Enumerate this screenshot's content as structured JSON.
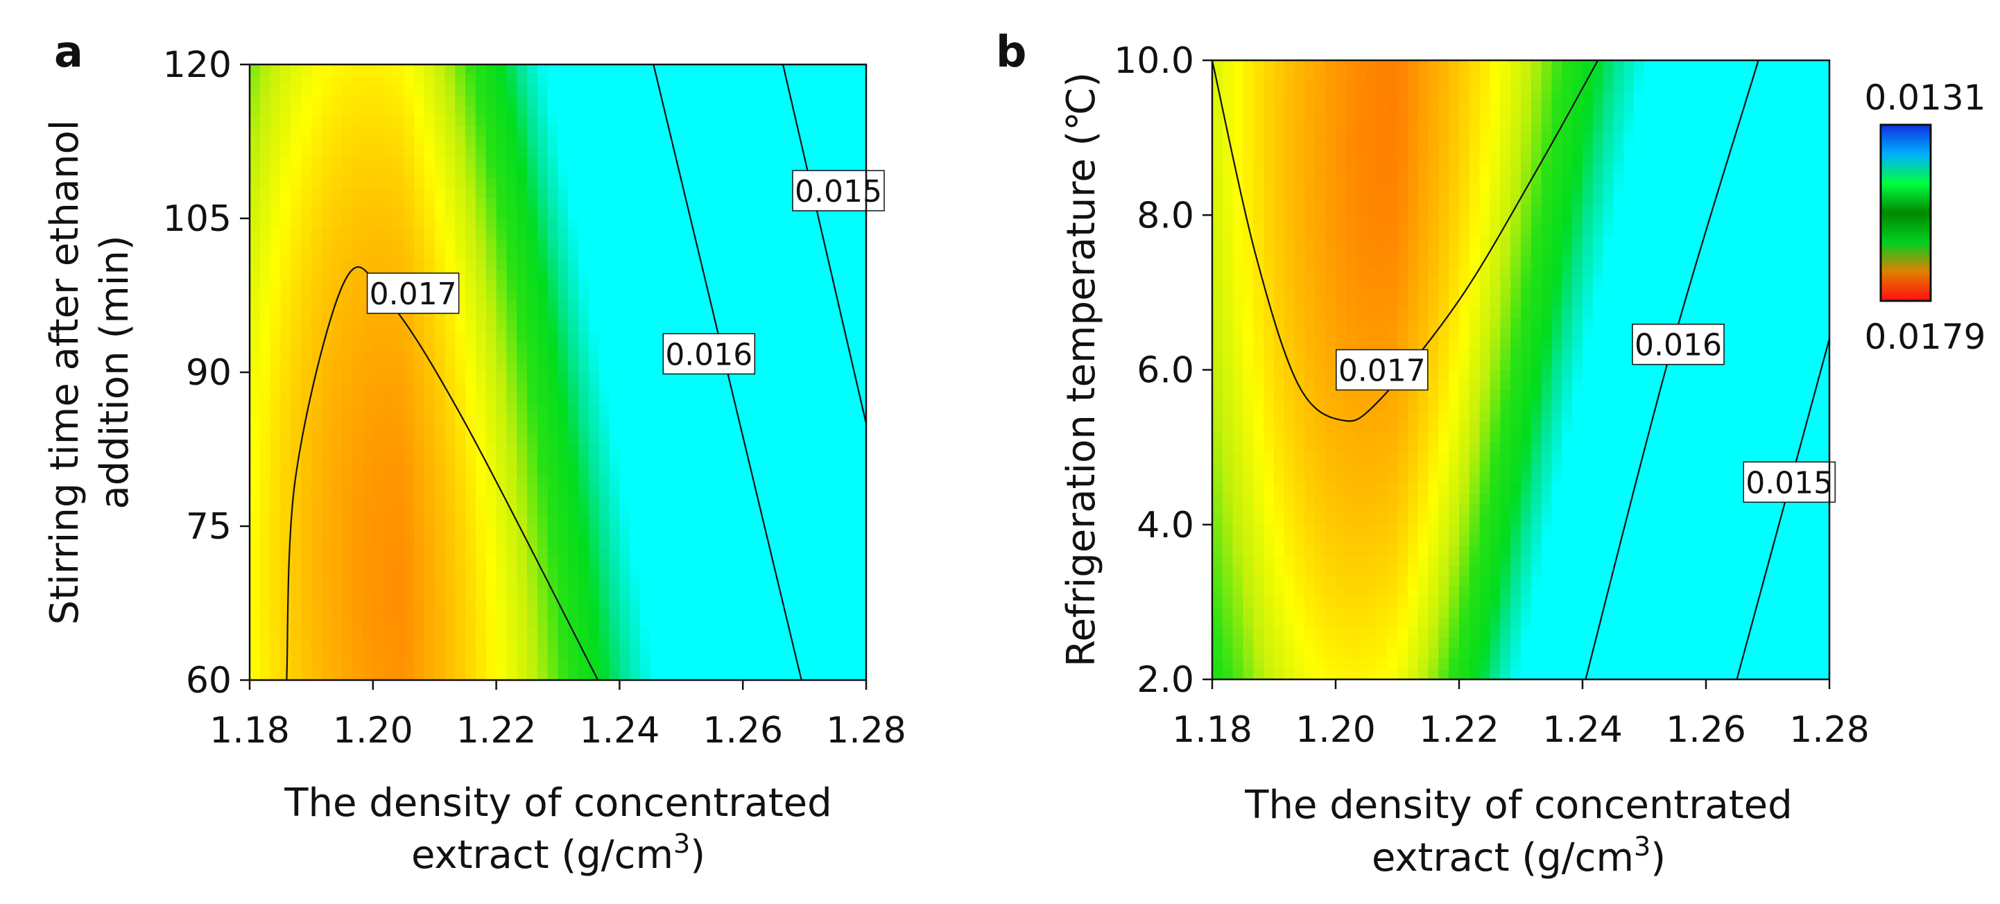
{
  "chart_data": [
    {
      "panel": "a",
      "type": "heatmap",
      "xlabel": [
        "The density of concentrated",
        "extract (g/cm³)"
      ],
      "ylabel": [
        "Stirring time after ethanol",
        "addition (min)"
      ],
      "xlim": [
        1.18,
        1.28
      ],
      "ylim": [
        60,
        120
      ],
      "xticks": [
        "1.18",
        "1.20",
        "1.22",
        "1.24",
        "1.26",
        "1.28"
      ],
      "yticks": [
        "60",
        "75",
        "90",
        "105",
        "120"
      ],
      "surface": {
        "peak_x": 1.205,
        "peak_y": 68,
        "peak_value": 0.01742,
        "corner_value_x1.28_y120": 0.0145
      },
      "contours": [
        {
          "label": "0.017",
          "points": [
            [
              1.186,
              60
            ],
            [
              1.1875,
              80
            ],
            [
              1.1955,
              99
            ],
            [
              1.2025,
              97
            ],
            [
              1.215,
              85
            ],
            [
              1.2365,
              60
            ]
          ],
          "label_at": [
            1.2065,
            97.7
          ]
        },
        {
          "label": "0.016",
          "points": [
            [
              1.2455,
              120
            ],
            [
              1.2695,
              60
            ]
          ],
          "label_at": [
            1.2545,
            91.8
          ]
        },
        {
          "label": "0.015",
          "points": [
            [
              1.2665,
              120
            ],
            [
              1.28,
              85
            ]
          ],
          "label_at": [
            1.2755,
            107.7
          ]
        }
      ]
    },
    {
      "panel": "b",
      "type": "heatmap",
      "xlabel": [
        "The density of concentrated",
        "extract (g/cm³)"
      ],
      "ylabel": [
        "Refrigeration temperature (℃)"
      ],
      "xlim": [
        1.18,
        1.28
      ],
      "ylim": [
        2.0,
        10.0
      ],
      "xticks": [
        "1.18",
        "1.20",
        "1.22",
        "1.24",
        "1.26",
        "1.28"
      ],
      "yticks": [
        "2.0",
        "4.0",
        "6.0",
        "8.0",
        "10.0"
      ],
      "surface": {
        "peak_x": 1.21,
        "peak_y": 9.5,
        "peak_value": 0.0175,
        "corner_value_x1.28_y2.0": 0.0144
      },
      "contours": [
        {
          "label": "0.017",
          "points": [
            [
              1.18,
              10.0
            ],
            [
              1.187,
              7.5
            ],
            [
              1.194,
              5.8
            ],
            [
              1.201,
              5.35
            ],
            [
              1.207,
              5.6
            ],
            [
              1.22,
              6.9
            ],
            [
              1.232,
              8.5
            ],
            [
              1.2425,
              10.0
            ]
          ],
          "label_at": [
            1.2075,
            6.0
          ]
        },
        {
          "label": "0.016",
          "points": [
            [
              1.2405,
              2.0
            ],
            [
              1.2545,
              6.3
            ],
            [
              1.2685,
              10.0
            ]
          ],
          "label_at": [
            1.2555,
            6.33
          ]
        },
        {
          "label": "0.015",
          "points": [
            [
              1.265,
              2.0
            ],
            [
              1.28,
              6.4
            ]
          ],
          "label_at": [
            1.2735,
            4.55
          ]
        }
      ]
    }
  ],
  "colorbar": {
    "max_label": "0.0131",
    "min_label": "0.0179",
    "max_color": "#1a4cff",
    "min_color": "#ff1a1a",
    "stops": [
      "#1030e0",
      "#00b0ff",
      "#00ff40",
      "#008800",
      "#00d020",
      "#e08000",
      "#ff1010"
    ]
  },
  "panel_letters": {
    "a": "a",
    "b": "b"
  },
  "xlabel_line1": "The density of concentrated",
  "xlabel_line2_prefix": "extract (g/cm",
  "xlabel_line2_sup": "3",
  "xlabel_line2_suffix": ")",
  "ylabel_a_line1": "Stirring time after ethanol",
  "ylabel_a_line2": "addition (min)",
  "ylabel_b": "Refrigeration temperature (℃)"
}
